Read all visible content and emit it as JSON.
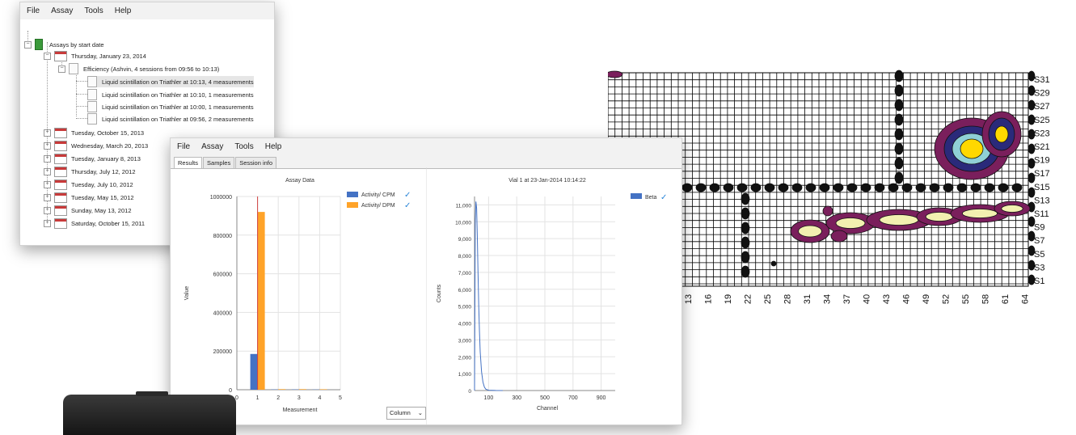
{
  "tree_window": {
    "menu": [
      "File",
      "Assay",
      "Tools",
      "Help"
    ],
    "root": "Assays by start date",
    "dates": [
      "Thursday, January 23, 2014",
      "Tuesday, October 15, 2013",
      "Wednesday, March 20, 2013",
      "Tuesday, January 8, 2013",
      "Thursday, July 12, 2012",
      "Tuesday, July 10, 2012",
      "Tuesday, May 15, 2012",
      "Sunday, May 13, 2012",
      "Saturday, October 15, 2011"
    ],
    "assay": "Efficiency (Ashvin, 4 sessions from 09:56 to 10:13)",
    "sessions": [
      "Liquid scintillation on Triathler at 10:13, 4 measurements",
      "Liquid scintillation on Triathler at 10:10, 1 measurements",
      "Liquid scintillation on Triathler at 10:00, 1 measurements",
      "Liquid scintillation on Triathler at 09:56, 2 measurements"
    ]
  },
  "main_window": {
    "menu": [
      "File",
      "Assay",
      "Tools",
      "Help"
    ],
    "tabs": [
      "Results",
      "Samples",
      "Session info"
    ],
    "combo_value": "Column"
  },
  "chart_data": [
    {
      "type": "bar",
      "title": "Assay Data",
      "xlabel": "Measurement",
      "ylabel": "Value",
      "x_ticks": [
        "0",
        "1",
        "2",
        "3",
        "4",
        "5"
      ],
      "y_ticks": [
        "0",
        "200000",
        "400000",
        "600000",
        "800000",
        "1000000"
      ],
      "xlim": [
        0,
        5
      ],
      "ylim": [
        0,
        1000000
      ],
      "categories": [
        1,
        2,
        3,
        4
      ],
      "series": [
        {
          "name": "Activity/ CPM",
          "color": "#4472c4",
          "values": [
            185000,
            1500,
            1500,
            1000
          ]
        },
        {
          "name": "Activity/ DPM",
          "color": "#ffa328",
          "values": [
            920000,
            3000,
            3000,
            2500
          ]
        }
      ],
      "legend": "top-right",
      "grid": true
    },
    {
      "type": "line",
      "title": "Vial 1 at 23-Jan-2014 10:14:22",
      "xlabel": "Channel",
      "ylabel": "Counts",
      "x_ticks": [
        "100",
        "300",
        "500",
        "700",
        "900"
      ],
      "y_ticks": [
        "0",
        "1,000",
        "2,000",
        "3,000",
        "4,000",
        "5,000",
        "6,000",
        "7,000",
        "8,000",
        "9,000",
        "10,000",
        "11,000"
      ],
      "xlim": [
        0,
        1000
      ],
      "ylim": [
        0,
        11500
      ],
      "series": [
        {
          "name": "Beta",
          "color": "#4472c4",
          "x": [
            5,
            10,
            15,
            20,
            25,
            30,
            35,
            40,
            50,
            60,
            70,
            80,
            100,
            150,
            200
          ],
          "y": [
            10000,
            11200,
            10800,
            9000,
            7000,
            5000,
            3500,
            2300,
            1100,
            500,
            200,
            80,
            20,
            5,
            2
          ]
        }
      ],
      "legend": "top-right",
      "grid": true
    },
    {
      "type": "heatmap",
      "x_ticks": [
        "13",
        "16",
        "19",
        "22",
        "25",
        "28",
        "31",
        "34",
        "37",
        "40",
        "43",
        "46",
        "49",
        "52",
        "55",
        "58",
        "61",
        "64"
      ],
      "y_ticks": [
        "S31",
        "S29",
        "S27",
        "S25",
        "S23",
        "S21",
        "S19",
        "S17",
        "S15",
        "S13",
        "S11",
        "S9",
        "S7",
        "S5",
        "S3",
        "S1"
      ],
      "colors": [
        "#7a1f5c",
        "#2a2a7a",
        "#8fd0d6",
        "#f2f0b0",
        "#ffd800"
      ]
    }
  ]
}
